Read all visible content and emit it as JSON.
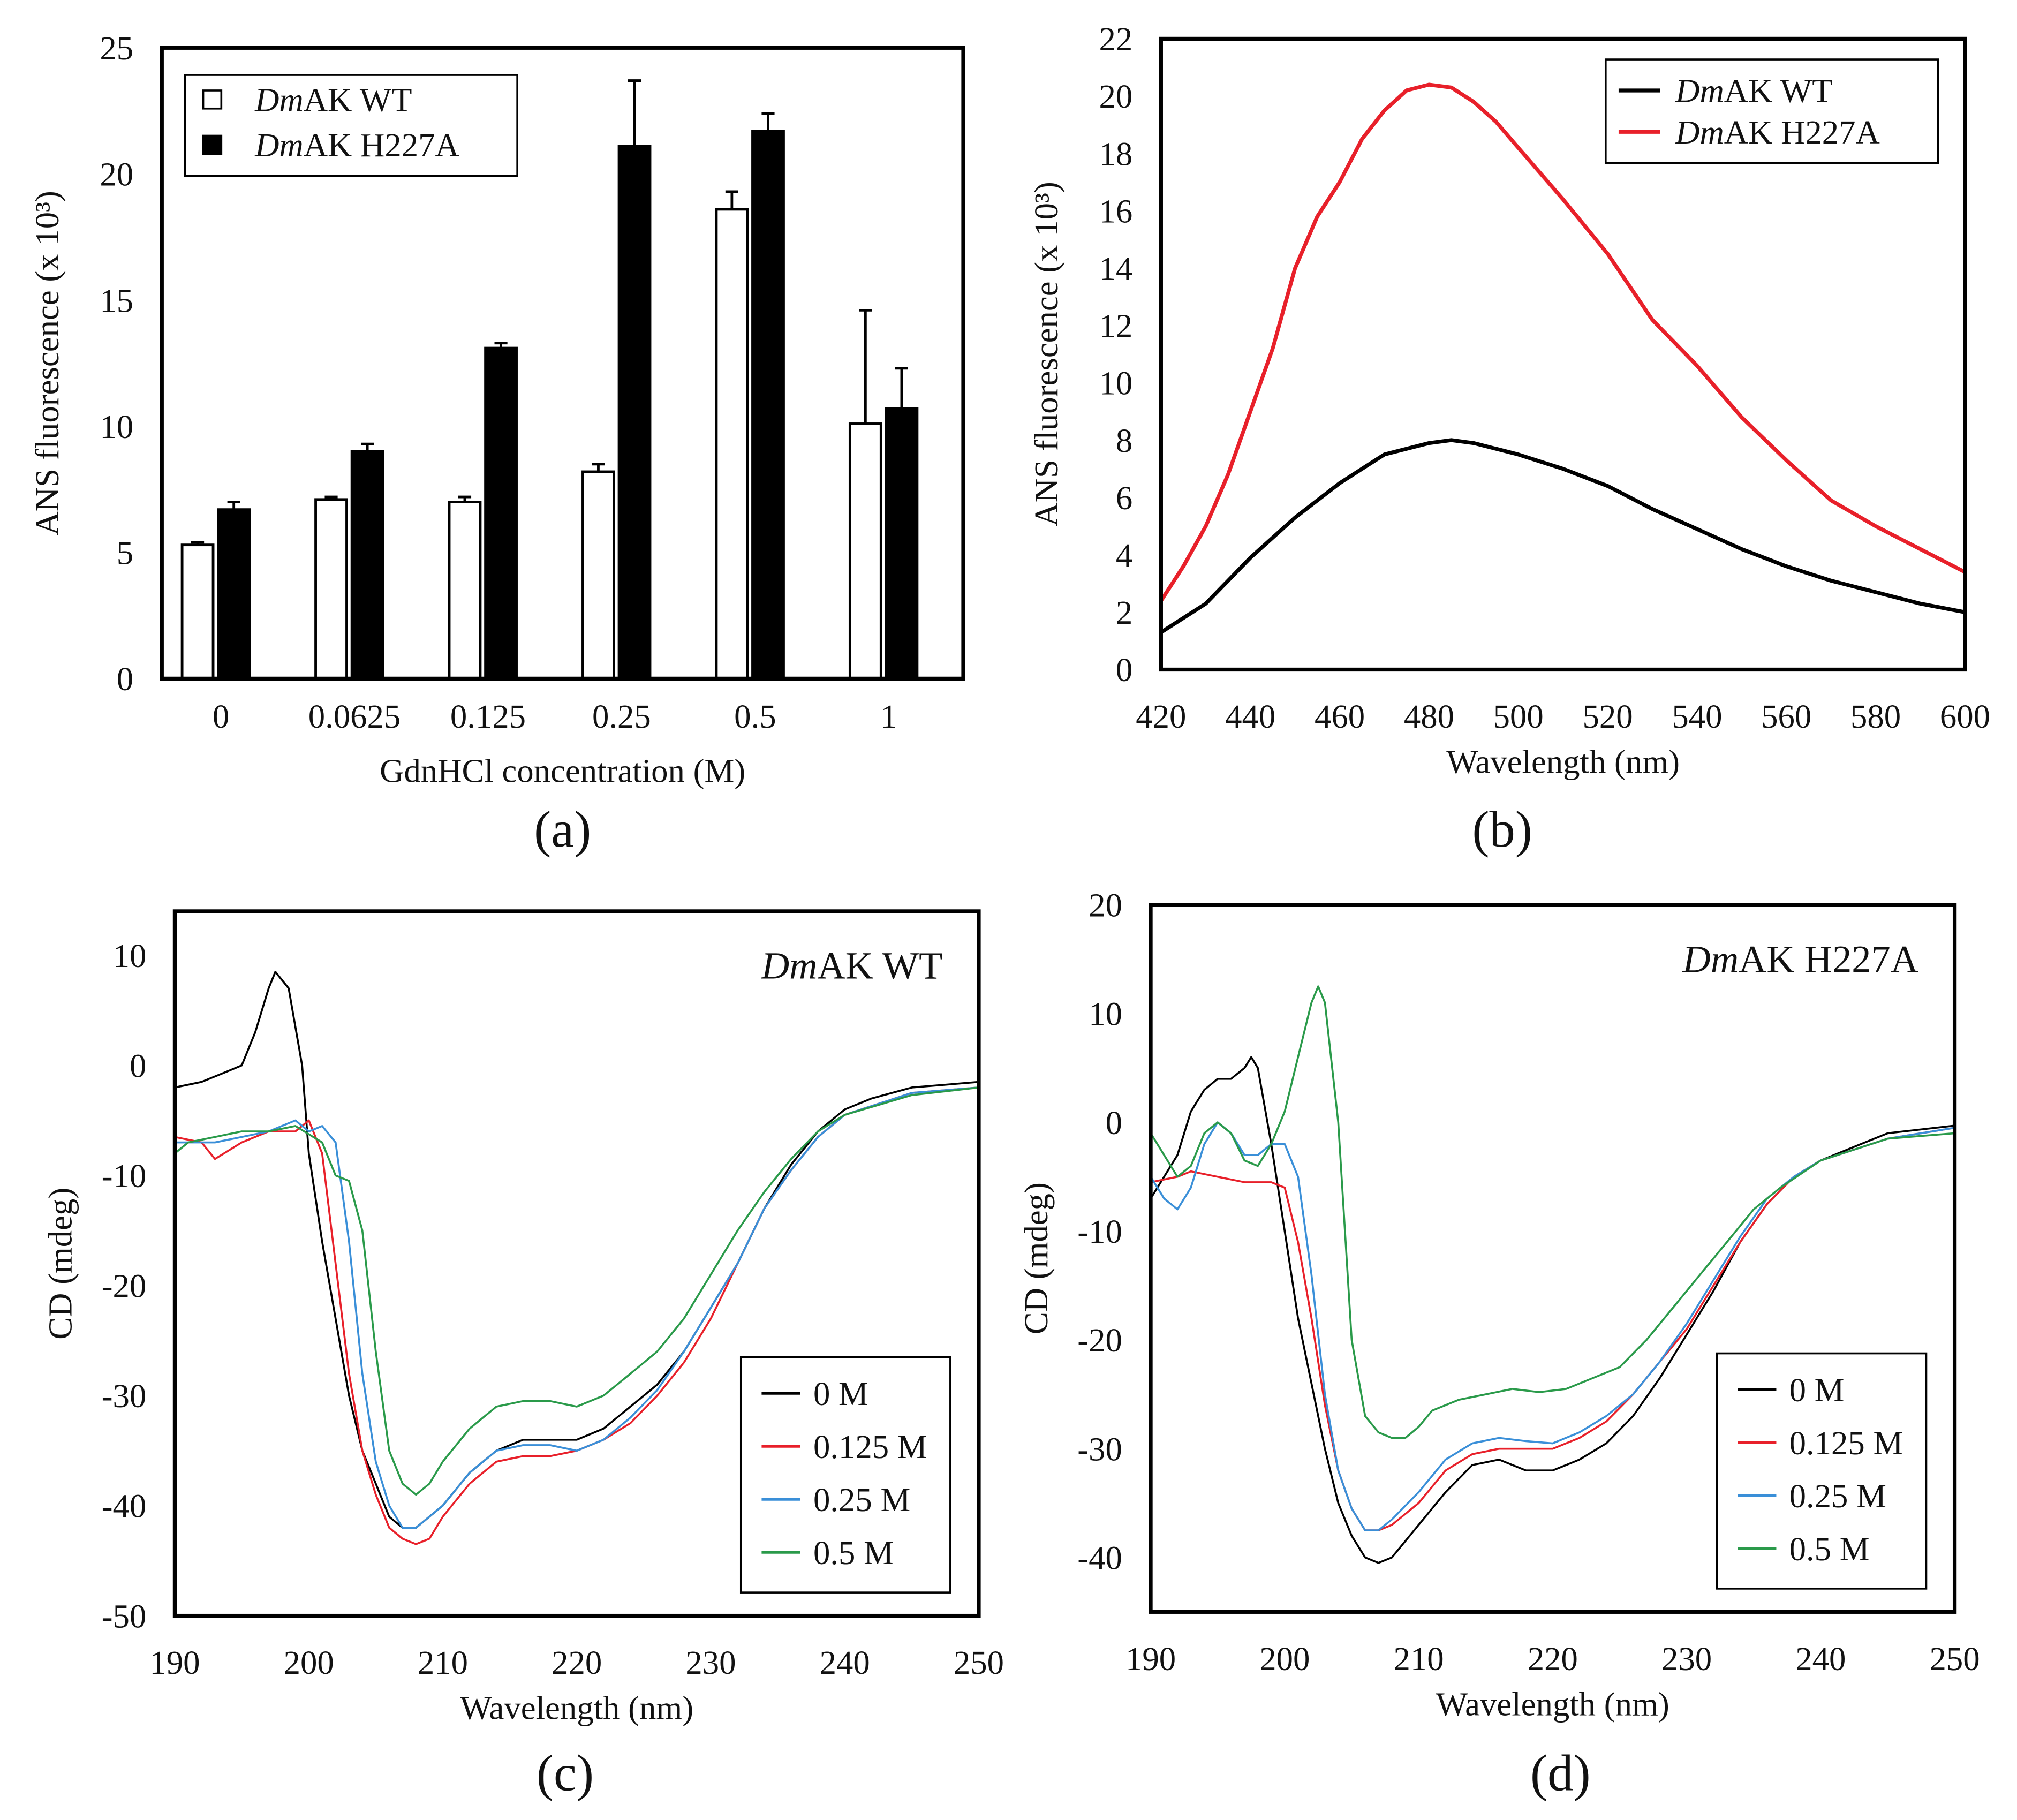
{
  "chart_data": [
    {
      "panel_label": "(a)",
      "type": "bar",
      "xlabel": "GdnHCl concentration (M)",
      "ylabel": "ANS fluorescence (x 10³)",
      "ylim": [
        0,
        25
      ],
      "yticks": [
        0,
        5,
        10,
        15,
        20,
        25
      ],
      "categories": [
        "0",
        "0.0625",
        "0.125",
        "0.25",
        "0.5",
        "1"
      ],
      "legend_position": "top-left",
      "series": [
        {
          "name": "DmAK WT",
          "fill": "#ffffff",
          "values": [
            5.3,
            7.1,
            7.0,
            8.2,
            18.6,
            10.1
          ],
          "errors": [
            0.1,
            0.1,
            0.2,
            0.3,
            0.7,
            4.5
          ]
        },
        {
          "name": "DmAK H227A",
          "fill": "#000000",
          "values": [
            6.7,
            9.0,
            13.1,
            21.1,
            21.7,
            10.7
          ],
          "errors": [
            0.3,
            0.3,
            0.2,
            2.6,
            0.7,
            1.6
          ]
        }
      ]
    },
    {
      "panel_label": "(b)",
      "type": "line",
      "xlabel": "Wavelength (nm)",
      "ylabel": "ANS fluorescence (x 10³)",
      "xlim": [
        420,
        600
      ],
      "ylim": [
        0,
        22
      ],
      "xticks": [
        420,
        440,
        460,
        480,
        500,
        520,
        540,
        560,
        580,
        600
      ],
      "yticks": [
        0,
        2,
        4,
        6,
        8,
        10,
        12,
        14,
        16,
        18,
        20,
        22
      ],
      "legend_position": "top-right",
      "series": [
        {
          "name": "DmAK WT",
          "color": "#000000",
          "width": 3,
          "x": [
            420,
            430,
            440,
            450,
            460,
            470,
            480,
            485,
            490,
            500,
            510,
            520,
            530,
            540,
            550,
            560,
            570,
            580,
            590,
            600
          ],
          "y": [
            1.3,
            2.3,
            3.9,
            5.3,
            6.5,
            7.5,
            7.9,
            8.0,
            7.9,
            7.5,
            7.0,
            6.4,
            5.6,
            4.9,
            4.2,
            3.6,
            3.1,
            2.7,
            2.3,
            2.0
          ]
        },
        {
          "name": "DmAK H227A",
          "color": "#e8202a",
          "width": 3,
          "x": [
            420,
            425,
            430,
            435,
            440,
            445,
            450,
            455,
            460,
            465,
            470,
            475,
            480,
            485,
            490,
            495,
            500,
            510,
            520,
            530,
            540,
            550,
            560,
            570,
            580,
            590,
            600
          ],
          "y": [
            2.4,
            3.6,
            5.0,
            6.8,
            9.0,
            11.2,
            14.0,
            15.8,
            17.0,
            18.5,
            19.5,
            20.2,
            20.4,
            20.3,
            19.8,
            19.1,
            18.2,
            16.4,
            14.5,
            12.2,
            10.6,
            8.8,
            7.3,
            5.9,
            5.0,
            4.2,
            3.4
          ]
        }
      ]
    },
    {
      "panel_label": "(c)",
      "type": "line",
      "annotation": "DmAK WT",
      "xlabel": "Wavelength (nm)",
      "ylabel": "CD (mdeg)",
      "xlim": [
        190,
        250
      ],
      "ylim": [
        -50,
        14
      ],
      "xticks": [
        190,
        200,
        210,
        220,
        230,
        240,
        250
      ],
      "yticks": [
        -50,
        -40,
        -30,
        -20,
        -10,
        0,
        10
      ],
      "legend_position": "bottom-right",
      "series": [
        {
          "name": "0 M",
          "color": "#000000",
          "width": 1.5,
          "x": [
            190,
            192,
            194,
            195,
            196,
            197,
            197.5,
            198.5,
            199.5,
            200,
            201,
            202,
            203,
            204,
            205,
            206,
            207,
            208,
            210,
            212,
            214,
            216,
            218,
            220,
            222,
            224,
            226,
            228,
            230,
            232,
            234,
            236,
            238,
            240,
            242,
            245,
            250
          ],
          "y": [
            -2,
            -1.5,
            -0.5,
            0,
            3,
            7,
            8.5,
            7,
            0,
            -8,
            -16,
            -23,
            -30,
            -35,
            -38,
            -41,
            -42,
            -42,
            -40,
            -37,
            -35,
            -34,
            -34,
            -34,
            -33,
            -31,
            -29,
            -26,
            -22,
            -18,
            -13,
            -9,
            -6,
            -4,
            -3,
            -2,
            -1.5
          ]
        },
        {
          "name": "0.125 M",
          "color": "#e8202a",
          "width": 1.5,
          "x": [
            190,
            192,
            193,
            195,
            197,
            199,
            200,
            201,
            202,
            203,
            204,
            205,
            206,
            207,
            208,
            209,
            210,
            212,
            214,
            216,
            218,
            220,
            222,
            224,
            226,
            228,
            230,
            232,
            234,
            236,
            238,
            240,
            245,
            250
          ],
          "y": [
            -6.5,
            -7,
            -8.5,
            -7,
            -6,
            -6,
            -5,
            -8,
            -18,
            -28,
            -35,
            -39,
            -42,
            -43,
            -43.5,
            -43,
            -41,
            -38,
            -36,
            -35.5,
            -35.5,
            -35,
            -34,
            -32.5,
            -30,
            -27,
            -23,
            -18,
            -13,
            -9.5,
            -6.5,
            -4.5,
            -2.5,
            -2
          ]
        },
        {
          "name": "0.25 M",
          "color": "#3a8fd8",
          "width": 1.5,
          "x": [
            190,
            193,
            195,
            197,
            199,
            200,
            201,
            202,
            203,
            204,
            205,
            206,
            207,
            208,
            210,
            212,
            214,
            216,
            218,
            220,
            222,
            224,
            226,
            228,
            230,
            232,
            234,
            236,
            238,
            240,
            245,
            250
          ],
          "y": [
            -7,
            -7,
            -6.5,
            -6,
            -5,
            -6,
            -5.5,
            -7,
            -16,
            -28,
            -36,
            -40,
            -42,
            -42,
            -40,
            -37,
            -35,
            -34.5,
            -34.5,
            -35,
            -34,
            -32,
            -29.5,
            -26,
            -22,
            -18,
            -13,
            -9.5,
            -6.5,
            -4.5,
            -2.5,
            -2
          ]
        },
        {
          "name": "0.5 M",
          "color": "#2a9a4a",
          "width": 1.5,
          "x": [
            190,
            191,
            193,
            195,
            197,
            199,
            201,
            202,
            203,
            204,
            205,
            206,
            207,
            208,
            209,
            210,
            212,
            214,
            216,
            218,
            220,
            222,
            224,
            226,
            228,
            230,
            232,
            234,
            236,
            238,
            240,
            245,
            250
          ],
          "y": [
            -8,
            -7,
            -6.5,
            -6,
            -6,
            -5.5,
            -7,
            -10,
            -10.5,
            -15,
            -26,
            -35,
            -38,
            -39,
            -38,
            -36,
            -33,
            -31,
            -30.5,
            -30.5,
            -31,
            -30,
            -28,
            -26,
            -23,
            -19,
            -15,
            -11.5,
            -8.5,
            -6,
            -4.5,
            -2.7,
            -2
          ]
        }
      ]
    },
    {
      "panel_label": "(d)",
      "type": "line",
      "annotation": "DmAK H227A",
      "xlabel": "Wavelength (nm)",
      "ylabel": "CD (mdeg)",
      "xlim": [
        190,
        250
      ],
      "ylim": [
        -45,
        20
      ],
      "xticks": [
        190,
        200,
        210,
        220,
        230,
        240,
        250
      ],
      "yticks": [
        -40,
        -30,
        -20,
        -10,
        0,
        10,
        20
      ],
      "legend_position": "bottom-right",
      "series": [
        {
          "name": "0 M",
          "color": "#000000",
          "width": 1.5,
          "x": [
            190,
            192,
            193,
            194,
            195,
            196,
            197,
            197.5,
            198,
            199,
            200,
            201,
            202,
            203,
            204,
            205,
            206,
            207,
            208,
            210,
            212,
            214,
            216,
            218,
            220,
            222,
            224,
            226,
            228,
            230,
            232,
            234,
            236,
            238,
            240,
            243,
            245,
            250
          ],
          "y": [
            -7,
            -3,
            1,
            3,
            4,
            4,
            5,
            6,
            5,
            -2,
            -10,
            -18,
            -24,
            -30,
            -35,
            -38,
            -40,
            -40.5,
            -40,
            -37,
            -34,
            -31.5,
            -31,
            -32,
            -32,
            -31,
            -29.5,
            -27,
            -23.5,
            -19.5,
            -15.5,
            -11,
            -7.5,
            -5,
            -3.5,
            -2,
            -1,
            -0.3
          ]
        },
        {
          "name": "0.125 M",
          "color": "#e8202a",
          "width": 1.5,
          "x": [
            190,
            192,
            193,
            195,
            197,
            199,
            200,
            201,
            202,
            203,
            204,
            205,
            206,
            207,
            208,
            210,
            212,
            214,
            216,
            218,
            220,
            222,
            224,
            226,
            228,
            230,
            232,
            234,
            236,
            238,
            240,
            245,
            250
          ],
          "y": [
            -5.5,
            -5,
            -4.5,
            -5,
            -5.5,
            -5.5,
            -6,
            -11,
            -18,
            -26,
            -32,
            -35.5,
            -37.5,
            -37.5,
            -37,
            -35,
            -32,
            -30.5,
            -30,
            -30,
            -30,
            -29,
            -27.5,
            -25,
            -22,
            -19,
            -15,
            -11,
            -7.5,
            -5,
            -3.5,
            -1.5,
            -0.5
          ]
        },
        {
          "name": "0.25 M",
          "color": "#3a8fd8",
          "width": 1.5,
          "x": [
            190,
            191,
            192,
            193,
            194,
            195,
            196,
            197,
            198,
            199,
            200,
            201,
            202,
            203,
            204,
            205,
            206,
            207,
            208,
            210,
            212,
            214,
            216,
            218,
            220,
            222,
            224,
            226,
            228,
            230,
            232,
            234,
            236,
            238,
            240,
            245,
            250
          ],
          "y": [
            -5,
            -7,
            -8,
            -6,
            -2,
            0,
            -1,
            -3,
            -3,
            -2,
            -2,
            -5,
            -14,
            -25,
            -32,
            -35.5,
            -37.5,
            -37.5,
            -36.5,
            -34,
            -31,
            -29.5,
            -29,
            -29.3,
            -29.5,
            -28.5,
            -27,
            -25,
            -22,
            -18.5,
            -14.5,
            -10.5,
            -7,
            -5,
            -3.5,
            -1.5,
            -0.5
          ]
        },
        {
          "name": "0.5 M",
          "color": "#2a9a4a",
          "width": 1.5,
          "x": [
            190,
            191,
            192,
            193,
            194,
            195,
            196,
            197,
            198,
            199,
            200,
            201,
            202,
            202.5,
            203,
            204,
            205,
            206,
            207,
            208,
            209,
            210,
            211,
            213,
            215,
            217,
            219,
            221,
            223,
            225,
            227,
            229,
            231,
            233,
            235,
            237,
            240,
            245,
            250
          ],
          "y": [
            -1,
            -3,
            -5,
            -4,
            -1,
            0,
            -1,
            -3.5,
            -4,
            -2,
            1,
            6,
            11,
            12.5,
            11,
            0,
            -20,
            -27,
            -28.5,
            -29,
            -29,
            -28,
            -26.5,
            -25.5,
            -25,
            -24.5,
            -24.8,
            -24.5,
            -23.5,
            -22.5,
            -20,
            -17,
            -14,
            -11,
            -8,
            -6,
            -3.5,
            -1.5,
            -1
          ]
        }
      ]
    }
  ]
}
